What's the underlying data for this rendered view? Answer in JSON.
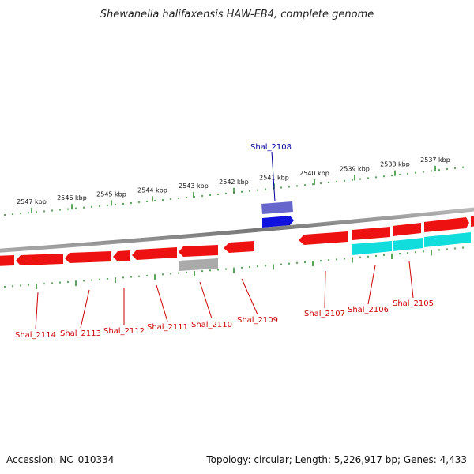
{
  "title": "Shewanella halifaxensis HAW-EB4, complete genome",
  "footer": {
    "accession": "Accession: NC_010334",
    "summary": "Topology: circular; Length: 5,226,917 bp; Genes: 4,433"
  },
  "colors": {
    "forward_gene": "#ee1111",
    "reverse_gene": "#ee1111",
    "cyan_gene": "#11dddd",
    "blue_gene": "#1111dd",
    "purple_gene": "#6666cc",
    "grey_gene": "#aaaaaa",
    "backbone": "#888888",
    "tick": "#228822",
    "label_red": "#cc0000",
    "label_blue": "#000099"
  },
  "ticks_upper": [
    {
      "label": "2547 kbp"
    },
    {
      "label": "2546 kbp"
    },
    {
      "label": "2545 kbp"
    },
    {
      "label": "2544 kbp"
    },
    {
      "label": "2543 kbp"
    },
    {
      "label": "2542 kbp"
    },
    {
      "label": "2541 kbp"
    },
    {
      "label": "2540 kbp"
    },
    {
      "label": "2539 kbp"
    },
    {
      "label": "2538 kbp"
    },
    {
      "label": "2537 kbp"
    }
  ],
  "gene_labels": {
    "top": [
      {
        "label": "Shal_2108"
      }
    ],
    "bottom": [
      {
        "label": "Shal_2114"
      },
      {
        "label": "Shal_2113"
      },
      {
        "label": "Shal_2112"
      },
      {
        "label": "Shal_2111"
      },
      {
        "label": "Shal_2110"
      },
      {
        "label": "Shal_2109"
      },
      {
        "label": "Shal_2107"
      },
      {
        "label": "Shal_2106"
      },
      {
        "label": "Shal_2105"
      }
    ]
  }
}
